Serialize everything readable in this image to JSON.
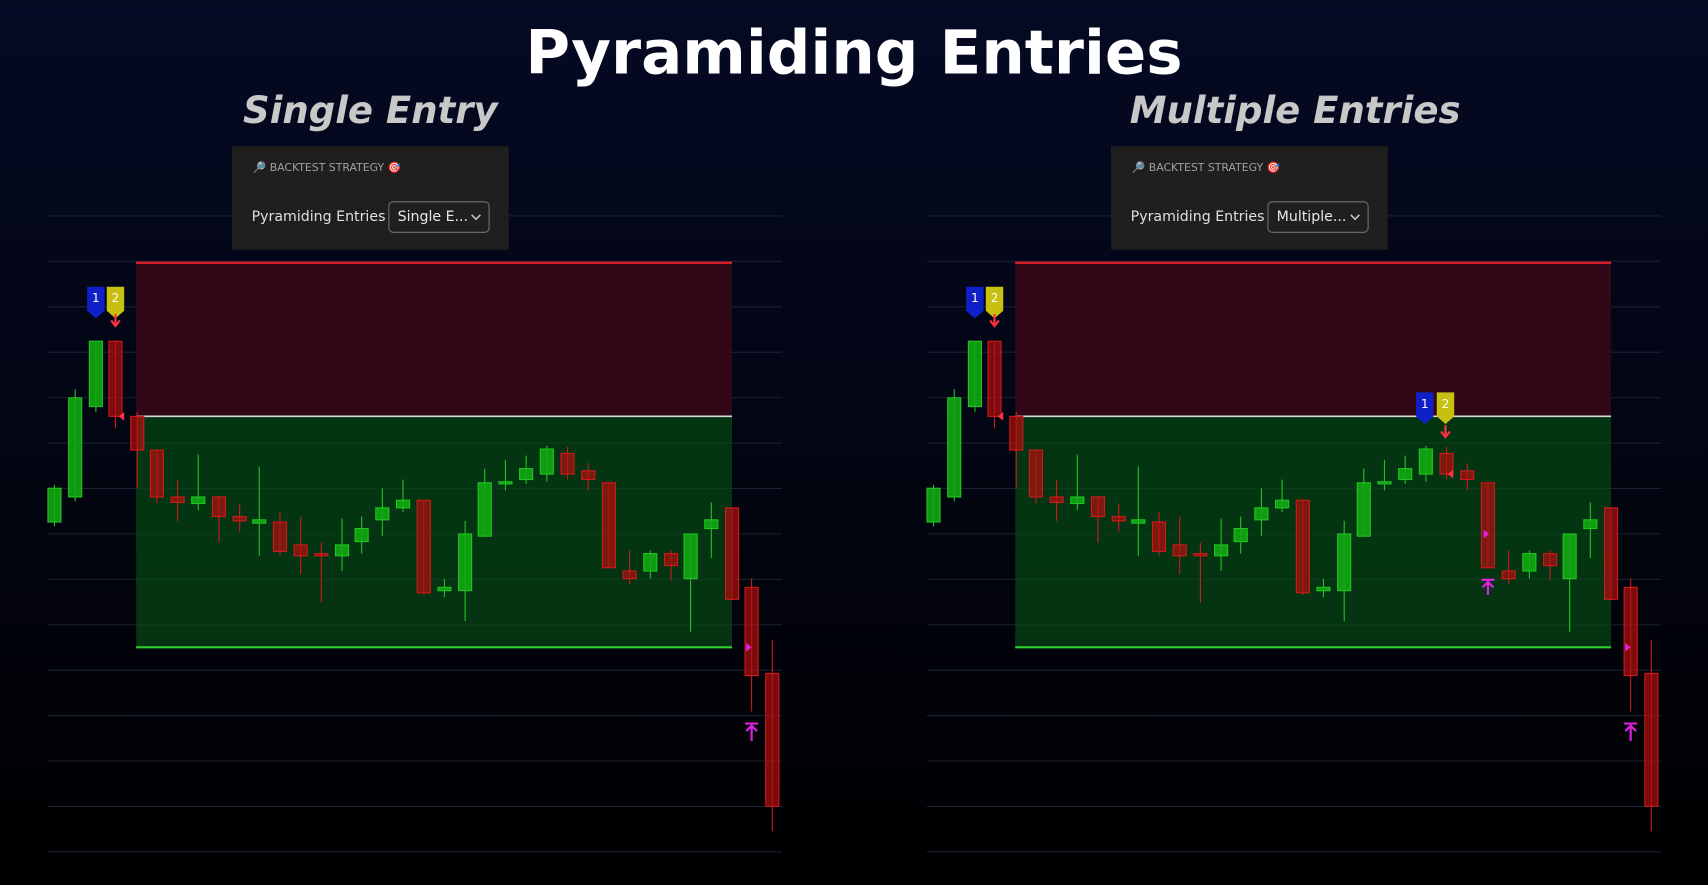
{
  "title": "Pyramiding Entries",
  "panels": [
    {
      "heading": "Single Entry",
      "settings": {
        "section": "🔎 BACKTEST STRATEGY 🎯",
        "label": "Pyramiding Entries",
        "value": "Single E..."
      },
      "markers": [
        "1",
        "2"
      ]
    },
    {
      "heading": "Multiple Entries",
      "settings": {
        "section": "🔎 BACKTEST STRATEGY 🎯",
        "label": "Pyramiding Entries",
        "value": "Multiple..."
      },
      "markers": [
        "1",
        "2",
        "1",
        "2"
      ]
    }
  ]
}
